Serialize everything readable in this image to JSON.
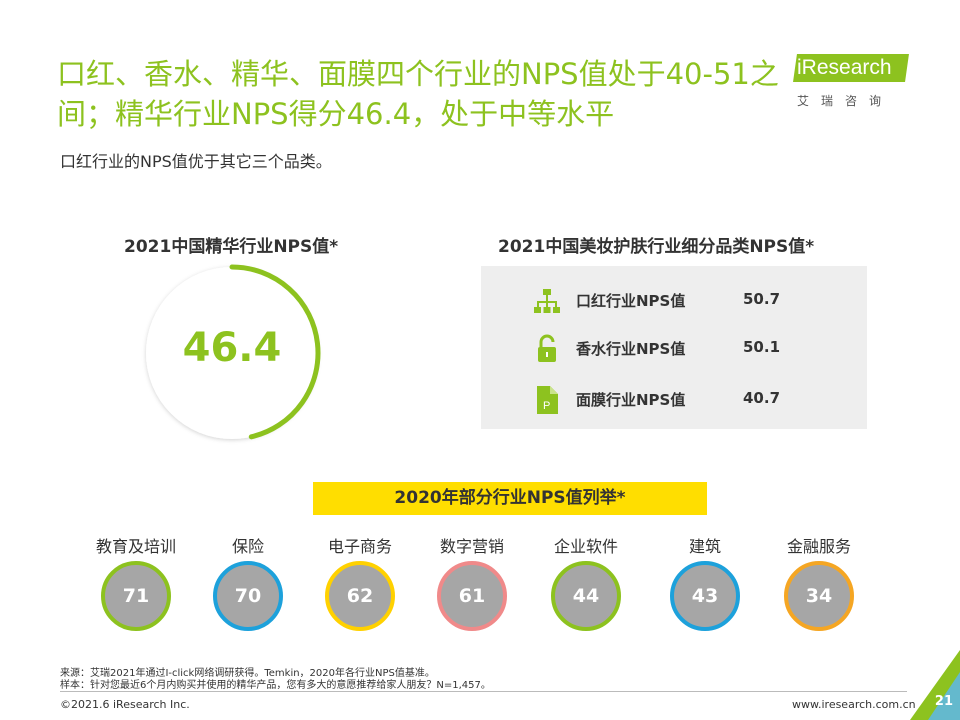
{
  "header": {
    "title": "口红、香水、精华、面膜四个行业的NPS值处于40-51之间；精华行业NPS得分46.4，处于中等水平",
    "subtitle": "口红行业的NPS值优于其它三个品类。"
  },
  "logo": {
    "wordmark": "iResearch",
    "cn": "艾瑞咨询",
    "color": "#8dc21f"
  },
  "essence": {
    "title": "2021中国精华行业NPS值*",
    "value": "46.4",
    "ratio": 0.464,
    "color": "#8dc21f"
  },
  "beauty": {
    "title": "2021中国美妆护肤行业细分品类NPS值*",
    "rows": [
      {
        "label": "口红行业NPS值",
        "value": "50.7",
        "icon": "hierarchy-icon"
      },
      {
        "label": "香水行业NPS值",
        "value": "50.1",
        "icon": "lock-icon"
      },
      {
        "label": "面膜行业NPS值",
        "value": "40.7",
        "icon": "file-p-icon"
      }
    ]
  },
  "industries": {
    "banner": "2020年部分行业NPS值列举*",
    "items": [
      {
        "name": "教育及培训",
        "value": "71",
        "color": "#8dc21f"
      },
      {
        "name": "保险",
        "value": "70",
        "color": "#1da1db"
      },
      {
        "name": "电子商务",
        "value": "62",
        "color": "#ffd100"
      },
      {
        "name": "数字营销",
        "value": "61",
        "color": "#f08a8a"
      },
      {
        "name": "企业软件",
        "value": "44",
        "color": "#8dc21f"
      },
      {
        "name": "建筑",
        "value": "43",
        "color": "#1da1db"
      },
      {
        "name": "金融服务",
        "value": "34",
        "color": "#f5a623"
      }
    ]
  },
  "notes": {
    "source": "来源：艾瑞2021年通过I-click网络调研获得。Temkin，2020年各行业NPS值基准。",
    "sample": "样本：针对您最近6个月内购买并使用的精华产品，您有多大的意愿推荐给家人朋友？N=1,457。"
  },
  "footer": {
    "copyright": "©2021.6 iResearch Inc.",
    "website": "www.iresearch.com.cn",
    "page": "21"
  }
}
